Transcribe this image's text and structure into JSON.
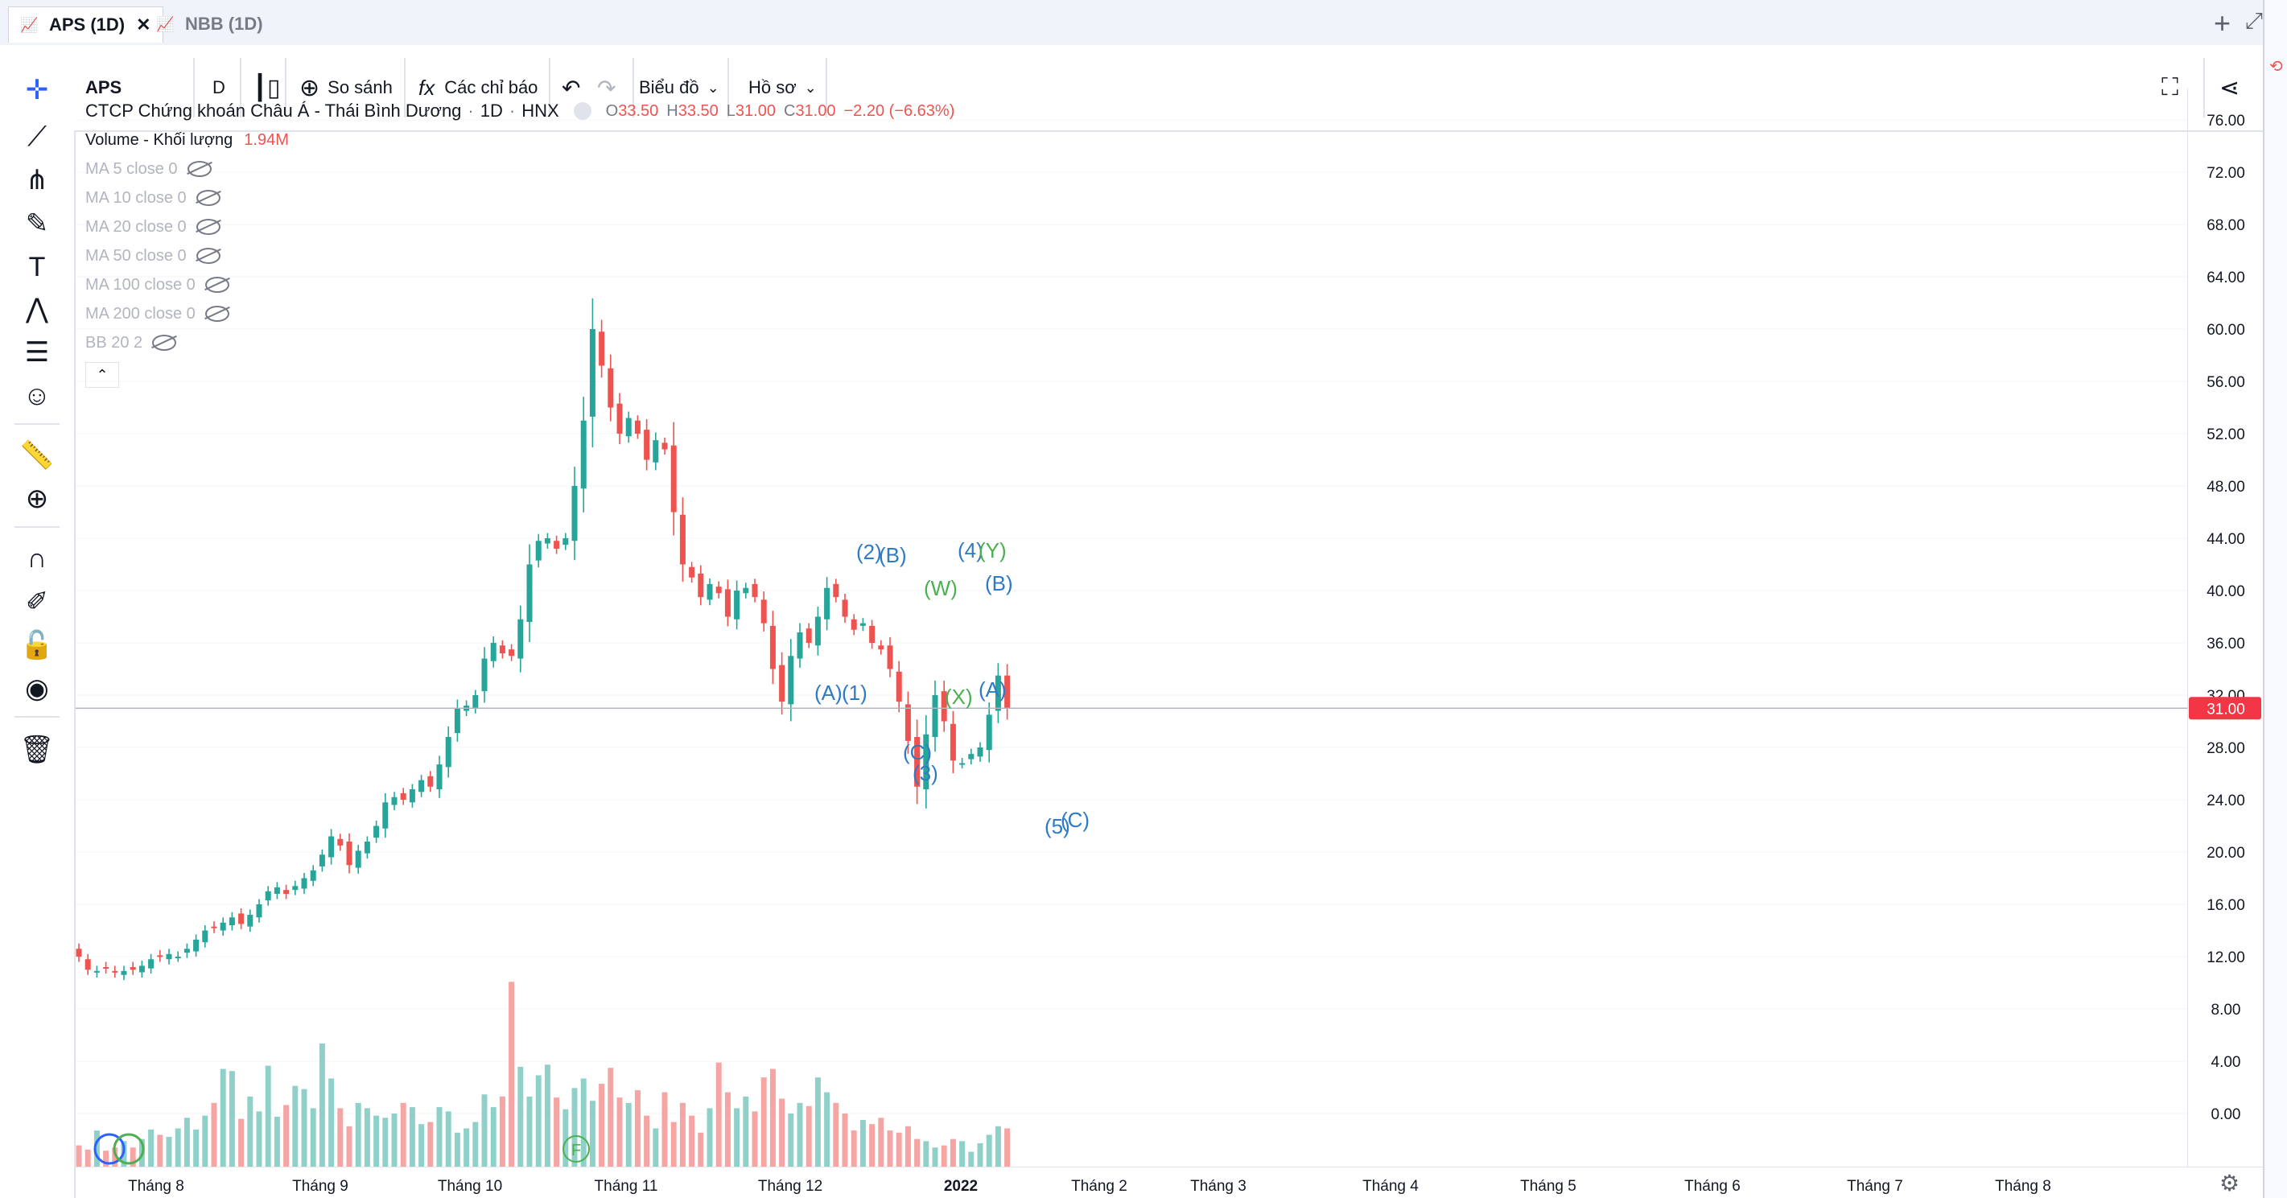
{
  "tabs": [
    {
      "label": "APS (1D)",
      "active": true
    },
    {
      "label": "NBB (1D)",
      "active": false
    }
  ],
  "toolbar": {
    "symbol": "APS",
    "interval": "D",
    "compare": "So sánh",
    "indicators": "Các chỉ báo",
    "chart_menu": "Biểu đồ",
    "profile_menu": "Hồ sơ"
  },
  "legend": {
    "title": "CTCP Chứng khoán Châu Á - Thái Bình Dương",
    "interval": "1D",
    "exchange": "HNX",
    "o_label": "O",
    "o_value": "33.50",
    "h_label": "H",
    "h_value": "33.50",
    "l_label": "L",
    "l_value": "31.00",
    "c_label": "C",
    "c_value": "31.00",
    "change": "−2.20 (−6.63%)",
    "volume_label": "Volume - Khối lượng",
    "volume_value": "1.94M",
    "ma": [
      "MA 5 close 0",
      "MA 10 close 0",
      "MA 20 close 0",
      "MA 50 close 0",
      "MA 100 close 0",
      "MA 200 close 0",
      "BB 20 2"
    ]
  },
  "colors": {
    "up": "#26a69a",
    "down": "#ef5350",
    "accent": "#2962ff",
    "wave_blue": "#2e7bc4",
    "wave_green": "#4caf50"
  },
  "chart_data": {
    "type": "candlestick",
    "y_ticks": [
      "76.00",
      "72.00",
      "68.00",
      "64.00",
      "60.00",
      "56.00",
      "52.00",
      "48.00",
      "44.00",
      "40.00",
      "36.00",
      "32.00",
      "28.00",
      "24.00",
      "20.00",
      "16.00",
      "12.00",
      "8.00",
      "4.00",
      "0.00"
    ],
    "x_ticks": [
      "Tháng 8",
      "Tháng 9",
      "Tháng 10",
      "Tháng 11",
      "Tháng 12",
      "2022",
      "Tháng 2",
      "Tháng 3",
      "Tháng 4",
      "Tháng 5",
      "Tháng 6",
      "Tháng 7",
      "Tháng 8"
    ],
    "last_price": "31.00",
    "closes": [
      12.0,
      11.0,
      10.9,
      11.1,
      10.8,
      10.9,
      11.0,
      11.3,
      11.8,
      12.0,
      12.2,
      12.0,
      12.6,
      13.3,
      14.0,
      14.2,
      14.6,
      15.0,
      14.5,
      15.2,
      16.0,
      17.0,
      17.3,
      16.8,
      17.4,
      18.0,
      18.6,
      19.8,
      21.2,
      20.5,
      19.0,
      20.1,
      20.8,
      22.0,
      23.8,
      24.2,
      24.0,
      24.8,
      25.5,
      25.0,
      26.7,
      28.8,
      31.0,
      31.2,
      32.0,
      34.8,
      36.0,
      35.2,
      35.0,
      37.8,
      42.0,
      43.8,
      44.0,
      43.2,
      44.0,
      48.0,
      53.0,
      60.0,
      57.2,
      54.0,
      52.0,
      53.2,
      52.0,
      50.0,
      51.5,
      50.8,
      46.0,
      42.0,
      41.0,
      39.5,
      40.5,
      39.8,
      38.0,
      40.0,
      40.2,
      39.5,
      37.5,
      34.0,
      31.5,
      35.0,
      36.8,
      36.0,
      38.0,
      40.2,
      39.5,
      38.0,
      37.0,
      37.5,
      36.0,
      35.5,
      34.0,
      31.5,
      28.5,
      25.0,
      29.0,
      32.0,
      30.0,
      27.0,
      26.8,
      27.5,
      28.0,
      30.5,
      33.5,
      31.0
    ],
    "volumes": [
      2.0,
      1.6,
      3.4,
      1.5,
      1.8,
      2.4,
      1.8,
      2.6,
      3.5,
      3.0,
      2.8,
      3.6,
      4.6,
      3.5,
      4.8,
      6.0,
      9.2,
      9.0,
      4.5,
      6.6,
      5.2,
      9.5,
      4.7,
      5.8,
      7.6,
      7.3,
      5.5,
      11.6,
      8.3,
      5.5,
      3.8,
      6.0,
      5.5,
      4.8,
      4.6,
      5.0,
      6.0,
      5.6,
      4.0,
      4.2,
      5.6,
      5.2,
      3.2,
      3.6,
      4.2,
      6.8,
      5.6,
      6.6,
      17.4,
      9.4,
      6.6,
      8.6,
      9.6,
      6.5,
      5.4,
      7.4,
      8.3,
      6.2,
      7.8,
      9.3,
      6.5,
      6.0,
      7.2,
      4.8,
      3.6,
      7.0,
      4.2,
      6.0,
      4.8,
      3.2,
      5.5,
      9.8,
      7.0,
      5.5,
      6.6,
      5.2,
      8.4,
      9.2,
      6.4,
      5.0,
      6.0,
      5.7,
      8.4,
      7.0,
      6.0,
      5.0,
      3.4,
      4.4,
      4.0,
      4.6,
      3.4,
      3.2,
      3.8,
      2.6,
      2.4,
      1.8,
      2.0,
      2.6,
      2.4,
      1.4,
      2.2,
      3.0,
      3.8,
      3.6
    ]
  },
  "wave_labels": [
    {
      "text": "(2)",
      "color": "blue"
    },
    {
      "text": "(B)",
      "color": "blue"
    },
    {
      "text": "(4)",
      "color": "blue"
    },
    {
      "text": "(Y)",
      "color": "green"
    },
    {
      "text": "(W)",
      "color": "green"
    },
    {
      "text": "(B)",
      "color": "blue"
    },
    {
      "text": "(A)",
      "color": "blue"
    },
    {
      "text": "(1)",
      "color": "blue"
    },
    {
      "text": "(X)",
      "color": "green"
    },
    {
      "text": "(A)",
      "color": "blue"
    },
    {
      "text": "(C)",
      "color": "blue"
    },
    {
      "text": "(3)",
      "color": "blue"
    },
    {
      "text": "(5)",
      "color": "blue"
    },
    {
      "text": "(C)",
      "color": "blue"
    }
  ],
  "event_markers": [
    "F"
  ]
}
